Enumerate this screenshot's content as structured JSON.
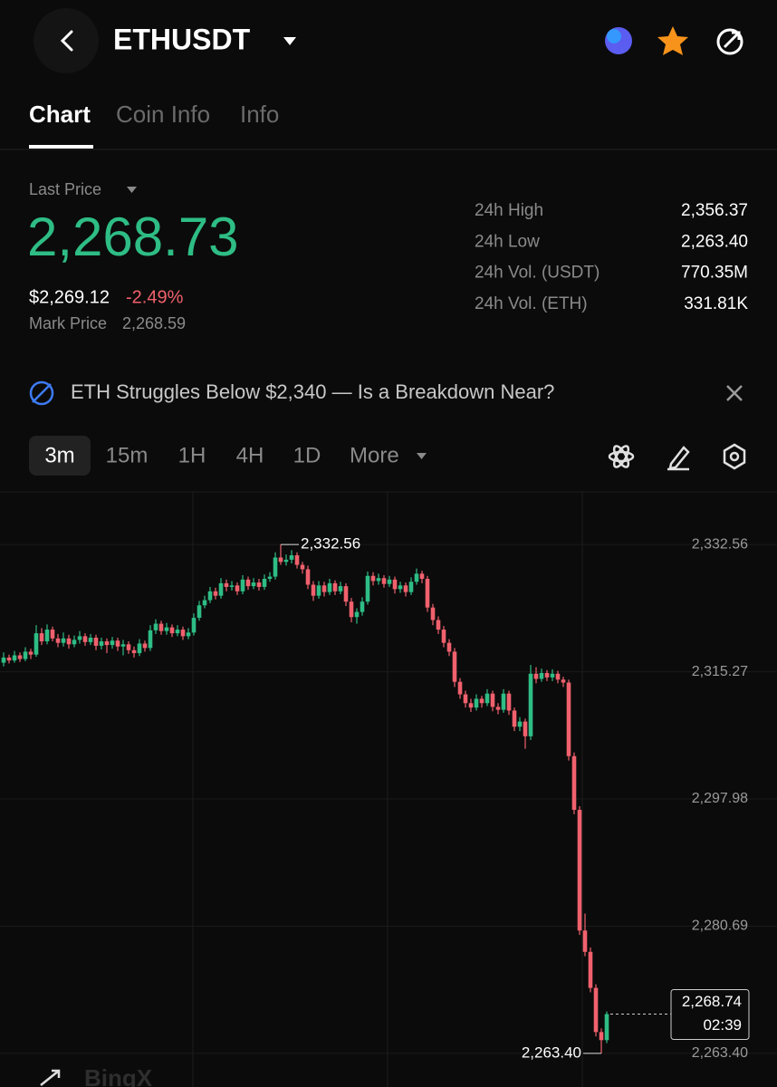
{
  "header": {
    "symbol": "ETHUSDT"
  },
  "tabs": [
    "Chart",
    "Coin Info",
    "Info"
  ],
  "price": {
    "label": "Last Price",
    "last": "2,268.73",
    "usd": "$2,269.12",
    "change": "-2.49%",
    "mark_label": "Mark Price",
    "mark": "2,268.59"
  },
  "stats": [
    [
      "24h High",
      "2,356.37"
    ],
    [
      "24h Low",
      "2,263.40"
    ],
    [
      "24h Vol. (USDT)",
      "770.35M"
    ],
    [
      "24h Vol. (ETH)",
      "331.81K"
    ]
  ],
  "news": "ETH Struggles Below $2,340 — Is a Breakdown Near?",
  "timeframes": [
    "3m",
    "15m",
    "1H",
    "4H",
    "1D",
    "More"
  ],
  "chart_data": {
    "type": "candlestick",
    "up_color": "#2ebd85",
    "down_color": "#f0616d",
    "ylim": [
      2258.83,
      2339.72
    ],
    "yticks": [
      {
        "value": 2332.56,
        "label": "2,332.56"
      },
      {
        "value": 2315.27,
        "label": "2,315.27"
      },
      {
        "value": 2297.98,
        "label": "2,297.98"
      },
      {
        "value": 2280.69,
        "label": "2,280.69"
      },
      {
        "value": 2263.4,
        "label": "2,263.40"
      }
    ],
    "grid": true,
    "high_label": {
      "value": 2332.56,
      "label": "2,332.56"
    },
    "low_label": {
      "value": 2263.4,
      "label": "2,263.40"
    },
    "last_price": {
      "value": 2268.74,
      "label": "2,268.74"
    },
    "countdown": "02:39",
    "watermark": "BingX",
    "ohlc": [
      [
        2316.5,
        2317.9,
        2316.0,
        2317.2
      ],
      [
        2317.2,
        2317.6,
        2316.4,
        2316.8
      ],
      [
        2316.8,
        2318.1,
        2316.5,
        2317.5
      ],
      [
        2317.5,
        2317.9,
        2316.6,
        2317.0
      ],
      [
        2317.0,
        2318.6,
        2316.7,
        2318.0
      ],
      [
        2318.0,
        2318.4,
        2317.0,
        2317.6
      ],
      [
        2317.6,
        2321.6,
        2317.3,
        2320.5
      ],
      [
        2320.5,
        2321.2,
        2318.9,
        2319.4
      ],
      [
        2319.4,
        2321.7,
        2319.0,
        2321.0
      ],
      [
        2321.0,
        2321.4,
        2319.4,
        2319.8
      ],
      [
        2319.8,
        2320.4,
        2318.6,
        2319.2
      ],
      [
        2319.2,
        2320.6,
        2318.7,
        2319.8
      ],
      [
        2319.8,
        2320.3,
        2318.4,
        2319.0
      ],
      [
        2319.0,
        2320.2,
        2318.6,
        2319.6
      ],
      [
        2319.6,
        2320.8,
        2319.1,
        2320.1
      ],
      [
        2320.1,
        2320.5,
        2318.8,
        2319.3
      ],
      [
        2319.3,
        2320.4,
        2318.9,
        2319.9
      ],
      [
        2319.9,
        2320.3,
        2318.2,
        2318.8
      ],
      [
        2318.8,
        2319.9,
        2318.3,
        2319.4
      ],
      [
        2319.4,
        2319.8,
        2317.8,
        2318.9
      ],
      [
        2318.9,
        2320.0,
        2318.4,
        2319.5
      ],
      [
        2319.5,
        2319.9,
        2318.1,
        2318.7
      ],
      [
        2318.7,
        2319.6,
        2317.5,
        2319.0
      ],
      [
        2319.0,
        2319.4,
        2317.7,
        2318.2
      ],
      [
        2318.2,
        2318.7,
        2317.2,
        2317.8
      ],
      [
        2317.8,
        2319.7,
        2317.4,
        2319.1
      ],
      [
        2319.1,
        2319.5,
        2318.0,
        2318.5
      ],
      [
        2318.5,
        2321.6,
        2318.1,
        2320.9
      ],
      [
        2320.9,
        2322.4,
        2320.4,
        2321.8
      ],
      [
        2321.8,
        2322.2,
        2320.3,
        2320.8
      ],
      [
        2320.8,
        2321.9,
        2320.3,
        2321.3
      ],
      [
        2321.3,
        2321.7,
        2320.0,
        2320.5
      ],
      [
        2320.5,
        2321.6,
        2320.1,
        2321.0
      ],
      [
        2321.0,
        2321.4,
        2319.6,
        2320.1
      ],
      [
        2320.1,
        2321.2,
        2319.7,
        2320.6
      ],
      [
        2320.6,
        2323.2,
        2320.2,
        2322.6
      ],
      [
        2322.6,
        2324.9,
        2322.2,
        2324.3
      ],
      [
        2324.3,
        2325.6,
        2323.9,
        2325.0
      ],
      [
        2325.0,
        2326.8,
        2324.6,
        2326.2
      ],
      [
        2326.2,
        2326.7,
        2325.1,
        2325.6
      ],
      [
        2325.6,
        2328.0,
        2325.2,
        2327.3
      ],
      [
        2327.3,
        2327.8,
        2326.2,
        2326.8
      ],
      [
        2326.8,
        2327.6,
        2326.3,
        2327.0
      ],
      [
        2327.0,
        2327.4,
        2325.7,
        2326.2
      ],
      [
        2326.2,
        2328.4,
        2325.8,
        2327.8
      ],
      [
        2327.8,
        2328.2,
        2326.4,
        2326.9
      ],
      [
        2326.9,
        2328.0,
        2326.5,
        2327.4
      ],
      [
        2327.4,
        2327.9,
        2326.3,
        2326.8
      ],
      [
        2326.8,
        2328.5,
        2326.4,
        2327.9
      ],
      [
        2327.9,
        2328.8,
        2327.5,
        2328.2
      ],
      [
        2328.2,
        2331.5,
        2327.8,
        2330.8
      ],
      [
        2330.8,
        2332.56,
        2329.8,
        2330.2
      ],
      [
        2330.2,
        2331.2,
        2329.7,
        2330.5
      ],
      [
        2330.5,
        2331.8,
        2330.0,
        2331.1
      ],
      [
        2331.1,
        2331.5,
        2329.3,
        2329.8
      ],
      [
        2329.8,
        2330.2,
        2328.6,
        2329.2
      ],
      [
        2329.2,
        2329.7,
        2326.5,
        2327.1
      ],
      [
        2327.1,
        2327.6,
        2324.9,
        2325.6
      ],
      [
        2325.6,
        2327.6,
        2325.2,
        2327.0
      ],
      [
        2327.0,
        2327.5,
        2325.5,
        2326.1
      ],
      [
        2326.1,
        2327.9,
        2325.7,
        2327.3
      ],
      [
        2327.3,
        2327.7,
        2325.7,
        2326.2
      ],
      [
        2326.2,
        2327.5,
        2325.8,
        2326.9
      ],
      [
        2326.9,
        2327.3,
        2324.2,
        2324.8
      ],
      [
        2324.8,
        2325.3,
        2322.0,
        2322.7
      ],
      [
        2322.7,
        2323.9,
        2321.8,
        2323.4
      ],
      [
        2323.4,
        2325.4,
        2322.9,
        2324.8
      ],
      [
        2324.8,
        2328.9,
        2324.4,
        2328.3
      ],
      [
        2328.3,
        2328.8,
        2327.0,
        2327.6
      ],
      [
        2327.6,
        2328.6,
        2327.1,
        2328.0
      ],
      [
        2328.0,
        2328.4,
        2326.7,
        2327.2
      ],
      [
        2327.2,
        2328.3,
        2326.8,
        2327.8
      ],
      [
        2327.8,
        2328.2,
        2325.9,
        2326.5
      ],
      [
        2326.5,
        2327.5,
        2326.0,
        2327.0
      ],
      [
        2327.0,
        2327.4,
        2325.5,
        2326.1
      ],
      [
        2326.1,
        2328.1,
        2325.7,
        2327.5
      ],
      [
        2327.5,
        2329.3,
        2327.1,
        2328.6
      ],
      [
        2328.6,
        2329.0,
        2327.3,
        2327.9
      ],
      [
        2327.9,
        2328.3,
        2323.4,
        2324.0
      ],
      [
        2324.0,
        2324.5,
        2321.6,
        2322.3
      ],
      [
        2322.3,
        2322.8,
        2320.4,
        2321.0
      ],
      [
        2321.0,
        2321.5,
        2318.6,
        2319.2
      ],
      [
        2319.2,
        2319.7,
        2317.4,
        2318.0
      ],
      [
        2318.0,
        2318.5,
        2313.2,
        2313.9
      ],
      [
        2313.9,
        2314.4,
        2311.6,
        2312.2
      ],
      [
        2312.2,
        2312.7,
        2310.4,
        2311.0
      ],
      [
        2311.0,
        2311.6,
        2309.8,
        2310.4
      ],
      [
        2310.4,
        2312.2,
        2310.0,
        2311.6
      ],
      [
        2311.6,
        2312.0,
        2310.4,
        2311.0
      ],
      [
        2311.0,
        2312.9,
        2310.6,
        2312.3
      ],
      [
        2312.3,
        2312.7,
        2309.9,
        2310.5
      ],
      [
        2310.5,
        2311.0,
        2309.5,
        2310.1
      ],
      [
        2310.1,
        2312.9,
        2309.7,
        2312.3
      ],
      [
        2312.3,
        2312.7,
        2309.4,
        2310.0
      ],
      [
        2310.0,
        2310.4,
        2307.2,
        2307.8
      ],
      [
        2307.8,
        2309.1,
        2307.2,
        2308.5
      ],
      [
        2308.5,
        2308.9,
        2304.8,
        2306.5
      ],
      [
        2306.5,
        2316.2,
        2306.0,
        2315.0
      ],
      [
        2315.0,
        2315.9,
        2313.7,
        2314.3
      ],
      [
        2314.3,
        2315.7,
        2313.9,
        2315.1
      ],
      [
        2315.1,
        2315.5,
        2314.0,
        2314.5
      ],
      [
        2314.5,
        2315.6,
        2314.0,
        2315.0
      ],
      [
        2315.0,
        2315.4,
        2313.7,
        2314.2
      ],
      [
        2314.2,
        2314.6,
        2313.2,
        2313.8
      ],
      [
        2313.8,
        2314.2,
        2303.2,
        2303.8
      ],
      [
        2303.8,
        2304.3,
        2295.9,
        2296.5
      ],
      [
        2296.5,
        2297.0,
        2279.5,
        2280.1
      ],
      [
        2280.1,
        2282.4,
        2276.6,
        2277.2
      ],
      [
        2277.2,
        2277.8,
        2271.7,
        2272.3
      ],
      [
        2272.3,
        2272.8,
        2265.7,
        2266.3
      ],
      [
        2266.3,
        2266.8,
        2263.4,
        2265.2
      ],
      [
        2265.2,
        2269.1,
        2264.8,
        2268.74
      ]
    ]
  }
}
